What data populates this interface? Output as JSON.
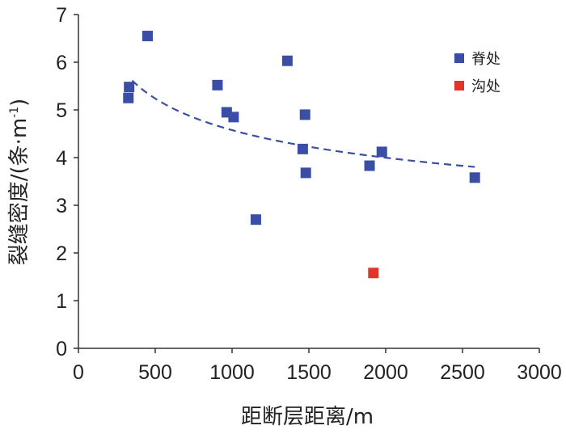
{
  "chart_data": {
    "type": "scatter",
    "xlabel": "距断层距离/m",
    "ylabel_main": "裂缝密度/(条·m",
    "ylabel_sup": "-1",
    "ylabel_close": ")",
    "xlim": [
      0,
      3000
    ],
    "ylim": [
      0,
      7
    ],
    "x_ticks": [
      0,
      500,
      1000,
      1500,
      2000,
      2500,
      3000
    ],
    "y_ticks": [
      0,
      1,
      2,
      3,
      4,
      5,
      6,
      7
    ],
    "grid": false,
    "legend_position": "top-right",
    "series": [
      {
        "name": "脊处",
        "color": "#3a4ea6",
        "marker": "square",
        "points": [
          [
            325,
            5.25
          ],
          [
            330,
            5.48
          ],
          [
            450,
            6.55
          ],
          [
            905,
            5.52
          ],
          [
            965,
            4.95
          ],
          [
            1010,
            4.85
          ],
          [
            1155,
            2.7
          ],
          [
            1360,
            6.03
          ],
          [
            1460,
            4.18
          ],
          [
            1475,
            4.9
          ],
          [
            1480,
            3.68
          ],
          [
            1895,
            3.83
          ],
          [
            1975,
            4.12
          ],
          [
            2580,
            3.58
          ]
        ]
      },
      {
        "name": "沟处",
        "color": "#e3342a",
        "marker": "square",
        "points": [
          [
            1920,
            1.58
          ]
        ]
      }
    ],
    "trendline": {
      "type": "power",
      "style": "dashed",
      "color": "#3a4ea6",
      "a": 17.6,
      "b": -0.195,
      "x_range": [
        350,
        2580
      ]
    }
  }
}
